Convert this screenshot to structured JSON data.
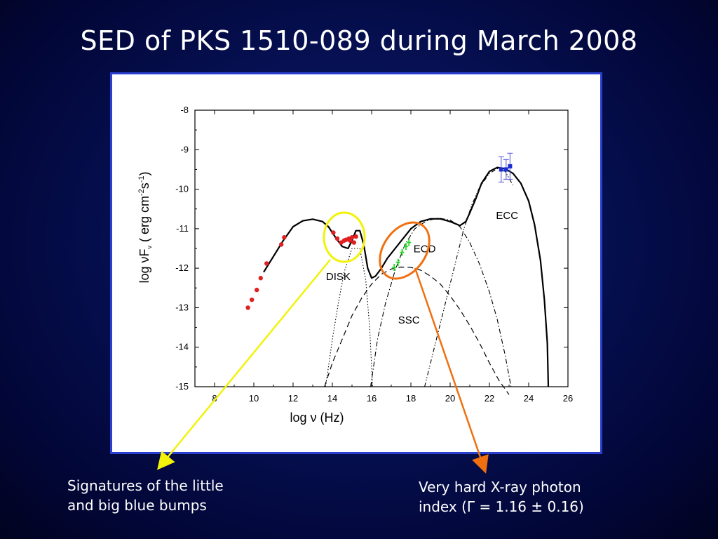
{
  "slide": {
    "title": "SED of PKS 1510-089 during March 2008",
    "caption_left": "Signatures of the little\nand big blue bumps",
    "caption_right": "Very hard X-ray photon\nindex (Γ = 1.16 ± 0.16)"
  },
  "colors": {
    "background": "#050f4f",
    "frame_border": "#2a3fd0",
    "yellow_annotation": "#f2f20a",
    "orange_annotation": "#f07010",
    "optical_points": "#e02020",
    "xray_points": "#22dd22",
    "gamma_points": "#1a2fd0",
    "gamma_errorbars": "#6a6ae0"
  },
  "chart_data": {
    "type": "scatter",
    "title": "",
    "xlabel": "log ν (Hz)",
    "ylabel": "log νFν ( erg cm-2s-1)",
    "xlim": [
      7,
      26
    ],
    "ylim": [
      -15,
      -8
    ],
    "xticks": [
      8,
      10,
      12,
      14,
      16,
      18,
      20,
      22,
      24,
      26
    ],
    "yticks": [
      -8,
      -9,
      -10,
      -11,
      -12,
      -13,
      -14,
      -15
    ],
    "grid": false,
    "component_labels": [
      {
        "text": "DISK",
        "x": 14.3,
        "y": -12.3
      },
      {
        "text": "ECD",
        "x": 18.7,
        "y": -11.6
      },
      {
        "text": "ECC",
        "x": 22.9,
        "y": -10.75
      },
      {
        "text": "SSC",
        "x": 17.9,
        "y": -13.4
      }
    ],
    "series": [
      {
        "style": "total-solid",
        "x": [
          10.5,
          11,
          11.5,
          12,
          12.5,
          13,
          13.5,
          13.8,
          14,
          14.2,
          14.5,
          14.8,
          15,
          15.2,
          15.4,
          15.6,
          15.8,
          16,
          16.2,
          16.5,
          16.8,
          17.2,
          17.6,
          18,
          18.5,
          19,
          19.5,
          20,
          20.5,
          20.8,
          21,
          21.3,
          21.6,
          22,
          22.4,
          22.8,
          23.2,
          23.6,
          24,
          24.3,
          24.6,
          24.8,
          24.95,
          25
        ],
        "y": [
          -12.1,
          -11.7,
          -11.3,
          -10.95,
          -10.8,
          -10.76,
          -10.82,
          -10.95,
          -11.1,
          -11.25,
          -11.45,
          -11.5,
          -11.3,
          -11.05,
          -11.05,
          -11.4,
          -12.0,
          -12.25,
          -12.2,
          -12.0,
          -11.75,
          -11.5,
          -11.25,
          -11.0,
          -10.82,
          -10.75,
          -10.75,
          -10.82,
          -10.92,
          -10.82,
          -10.6,
          -10.25,
          -9.85,
          -9.55,
          -9.45,
          -9.48,
          -9.6,
          -9.85,
          -10.3,
          -10.9,
          -11.8,
          -12.8,
          -13.9,
          -15
        ]
      },
      {
        "name": "DISK",
        "style": "dotted",
        "x": [
          13.65,
          13.8,
          14,
          14.3,
          14.6,
          15,
          15.4,
          15.7,
          15.9,
          16.05
        ],
        "y": [
          -15,
          -14.5,
          -13.8,
          -12.9,
          -12.1,
          -11.5,
          -11.5,
          -12.3,
          -13.5,
          -15
        ]
      },
      {
        "name": "ECD",
        "style": "dash-dot",
        "x": [
          15.95,
          16.3,
          16.7,
          17.2,
          17.7,
          18.2,
          18.8,
          19.4,
          20,
          20.5,
          21,
          21.5,
          22,
          22.4,
          22.8,
          23.1
        ],
        "y": [
          -15,
          -13.8,
          -12.9,
          -12.05,
          -11.4,
          -11.0,
          -10.8,
          -10.73,
          -10.78,
          -10.95,
          -11.35,
          -11.9,
          -12.6,
          -13.3,
          -14.2,
          -15
        ]
      },
      {
        "name": "SSC",
        "style": "dashed",
        "x": [
          13.6,
          14,
          14.5,
          15,
          15.5,
          16,
          16.5,
          17,
          17.5,
          18,
          18.5,
          19,
          19.5,
          20,
          20.5,
          21,
          21.5,
          22,
          22.5,
          23
        ],
        "y": [
          -15,
          -14.4,
          -13.8,
          -13.2,
          -12.75,
          -12.4,
          -12.15,
          -12.02,
          -11.97,
          -11.98,
          -12.05,
          -12.2,
          -12.4,
          -12.7,
          -13.05,
          -13.45,
          -13.9,
          -14.4,
          -14.85,
          -15.2
        ]
      },
      {
        "name": "ECC",
        "style": "dash-dot-dot",
        "x": [
          18.7,
          19.2,
          19.7,
          20.2,
          20.7,
          21.1,
          21.5,
          22,
          22.4,
          22.8,
          23.2
        ],
        "y": [
          -15,
          -14.0,
          -13.0,
          -12.0,
          -11.0,
          -10.4,
          -9.95,
          -9.6,
          -9.48,
          -9.55,
          -9.9
        ]
      },
      {
        "name": "radio-ir-optical",
        "style": "points-red",
        "x": [
          9.7,
          9.9,
          10.15,
          10.35,
          10.65,
          11.4,
          11.55,
          14.05,
          14.25,
          14.45,
          14.6,
          14.7,
          14.85,
          15.0,
          15.1,
          15.2,
          14.9
        ],
        "y": [
          -13.0,
          -12.8,
          -12.55,
          -12.25,
          -11.88,
          -11.4,
          -11.22,
          -11.1,
          -11.25,
          -11.35,
          -11.3,
          -11.28,
          -11.25,
          -11.22,
          -11.35,
          -11.2,
          -11.3
        ]
      },
      {
        "name": "x-ray",
        "style": "points-green",
        "x": [
          17.15,
          17.35,
          17.55,
          17.75,
          17.9
        ],
        "y": [
          -11.98,
          -11.85,
          -11.6,
          -11.45,
          -11.35
        ]
      },
      {
        "name": "gamma-ray",
        "style": "points-blue",
        "x": [
          22.6,
          22.85,
          23.05
        ],
        "y": [
          -9.5,
          -9.5,
          -9.42
        ],
        "err": [
          0.32,
          0.25,
          0.33
        ]
      }
    ]
  }
}
